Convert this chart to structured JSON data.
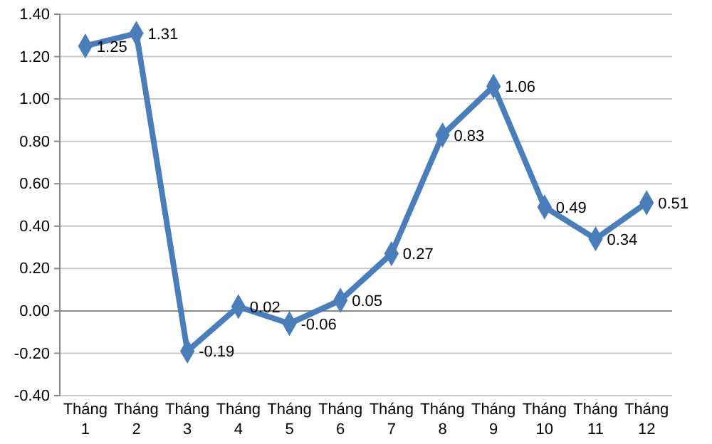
{
  "chart_data": {
    "type": "line",
    "categories": [
      "Tháng 1",
      "Tháng 2",
      "Tháng 3",
      "Tháng 4",
      "Tháng 5",
      "Tháng 6",
      "Tháng 7",
      "Tháng 8",
      "Tháng 9",
      "Tháng 10",
      "Tháng 11",
      "Tháng 12"
    ],
    "series": [
      {
        "color": "#4a7ebb",
        "values": [
          1.25,
          1.31,
          -0.19,
          0.02,
          -0.06,
          0.05,
          0.27,
          0.83,
          1.06,
          0.49,
          0.34,
          0.51
        ]
      }
    ],
    "ylim": [
      -0.4,
      1.4
    ],
    "yticks": [
      {
        "value": -0.4,
        "label": "-0.40"
      },
      {
        "value": -0.2,
        "label": "-0.20"
      },
      {
        "value": 0,
        "label": "0.00"
      },
      {
        "value": 0.2,
        "label": "0.20"
      },
      {
        "value": 0.4,
        "label": "0.40"
      },
      {
        "value": 0.6,
        "label": "0.60"
      },
      {
        "value": 0.8,
        "label": "0.80"
      },
      {
        "value": 1,
        "label": "1.00"
      },
      {
        "value": 1.2,
        "label": "1.20"
      },
      {
        "value": 1.4,
        "label": "1.40"
      }
    ],
    "grid": "y",
    "marker": "diamond",
    "line_style": "solid",
    "data_labels": true
  }
}
